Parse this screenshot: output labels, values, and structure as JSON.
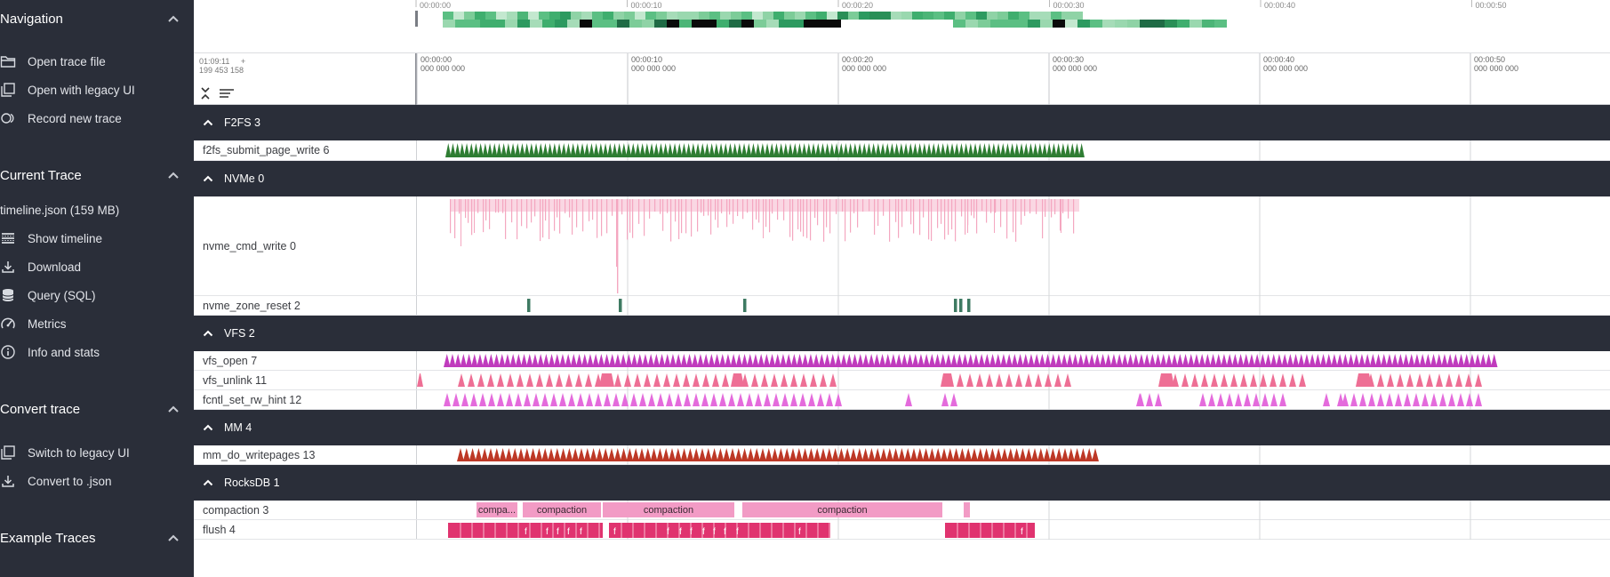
{
  "sidebar": {
    "sections": [
      {
        "title": "Navigation",
        "items": [
          {
            "label": "Open trace file",
            "icon": "folder-open-icon"
          },
          {
            "label": "Open with legacy UI",
            "icon": "filter-none-icon"
          },
          {
            "label": "Record new trace",
            "icon": "fiber-smart-record-icon"
          }
        ]
      },
      {
        "title": "Current Trace",
        "subtitle": "timeline.json (159 MB)",
        "items": [
          {
            "label": "Show timeline",
            "icon": "calendar-view-day-icon"
          },
          {
            "label": "Download",
            "icon": "file-download-icon"
          },
          {
            "label": "Query (SQL)",
            "icon": "database-icon"
          },
          {
            "label": "Metrics",
            "icon": "speed-icon"
          },
          {
            "label": "Info and stats",
            "icon": "info-icon"
          }
        ]
      },
      {
        "title": "Convert trace",
        "items": [
          {
            "label": "Switch to legacy UI",
            "icon": "filter-none-icon"
          },
          {
            "label": "Convert to .json",
            "icon": "file-download-icon"
          }
        ]
      },
      {
        "title": "Example Traces",
        "items": []
      }
    ]
  },
  "overview": {
    "ticks": [
      "00:00:00",
      "00:00:10",
      "00:00:20",
      "00:00:30",
      "00:00:40",
      "00:00:50"
    ]
  },
  "ruler": {
    "offset_time": "01:09:11",
    "offset_plus": "+",
    "offset_sub": "199 453 158",
    "ticks": [
      {
        "t": "00:00:00",
        "sub": "000 000 000"
      },
      {
        "t": "00:00:10",
        "sub": "000 000 000"
      },
      {
        "t": "00:00:20",
        "sub": "000 000 000"
      },
      {
        "t": "00:00:30",
        "sub": "000 000 000"
      },
      {
        "t": "00:00:40",
        "sub": "000 000 000"
      },
      {
        "t": "00:00:50",
        "sub": "000 000 000"
      }
    ]
  },
  "groups": [
    {
      "title": "F2FS 3",
      "tracks": [
        {
          "label": "f2fs_submit_page_write 6"
        }
      ]
    },
    {
      "title": "NVMe 0",
      "tracks": [
        {
          "label": "nvme_cmd_write 0"
        },
        {
          "label": "nvme_zone_reset 2"
        }
      ]
    },
    {
      "title": "VFS 2",
      "tracks": [
        {
          "label": "vfs_open 7"
        },
        {
          "label": "vfs_unlink 11"
        },
        {
          "label": "fcntl_set_rw_hint 12"
        }
      ]
    },
    {
      "title": "MM 4",
      "tracks": [
        {
          "label": "mm_do_writepages 13"
        }
      ]
    },
    {
      "title": "RocksDB 1",
      "tracks": [
        {
          "label": "compaction 3"
        },
        {
          "label": "flush 4"
        }
      ]
    }
  ],
  "slices": {
    "compaction": [
      "compa...",
      "compaction",
      "compaction",
      "compaction"
    ],
    "flush_letter": "f"
  },
  "colors": {
    "sidebar_bg": "#2a2e39",
    "f2fs": "#2e7d32",
    "nvme_write": "#f4a7c0",
    "nvme_reset": "#3e7a62",
    "vfs_open": "#c03bbd",
    "vfs_unlink": "#ee6f95",
    "fcntl": "#e46bdc",
    "mm": "#bd3826",
    "compaction": "#f29bc5",
    "flush": "#e0336f"
  }
}
